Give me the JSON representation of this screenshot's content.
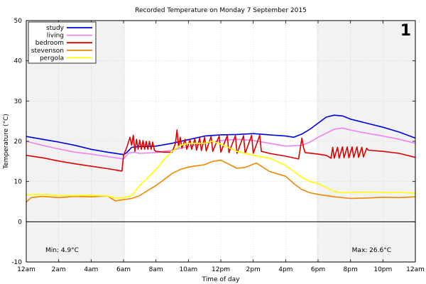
{
  "chart_data": {
    "type": "line",
    "title": "Recorded Temperature on Monday  7 September 2015",
    "xlabel": "Time of day",
    "ylabel": "Temperature (°C)",
    "panel_number": "1",
    "xlim": [
      0,
      24
    ],
    "ylim": [
      -10,
      50
    ],
    "grid": true,
    "legend_position": "top-left",
    "x_ticks": [
      {
        "x": 0,
        "label": "12am"
      },
      {
        "x": 2,
        "label": "2am"
      },
      {
        "x": 4,
        "label": "4am"
      },
      {
        "x": 6,
        "label": "6am"
      },
      {
        "x": 8,
        "label": "8am"
      },
      {
        "x": 10,
        "label": "10am"
      },
      {
        "x": 12,
        "label": "12pm"
      },
      {
        "x": 14,
        "label": "2pm"
      },
      {
        "x": 16,
        "label": "4pm"
      },
      {
        "x": 18,
        "label": "6pm"
      },
      {
        "x": 20,
        "label": "8pm"
      },
      {
        "x": 22,
        "label": "10pm"
      },
      {
        "x": 24,
        "label": "12am"
      }
    ],
    "y_ticks": [
      -10,
      0,
      10,
      20,
      30,
      40,
      50
    ],
    "night_shading": [
      [
        0,
        6.1
      ],
      [
        17.9,
        24
      ]
    ],
    "annotations": {
      "min": "Min: 4.9°C",
      "max": "Max: 26.6°C"
    },
    "series": [
      {
        "name": "study",
        "color": "#0000dd",
        "points": [
          [
            0,
            21.2
          ],
          [
            1,
            20.5
          ],
          [
            2,
            19.8
          ],
          [
            3,
            19.0
          ],
          [
            4,
            18.0
          ],
          [
            5,
            17.3
          ],
          [
            6,
            16.7
          ],
          [
            6.2,
            17.2
          ],
          [
            6.5,
            18.5
          ],
          [
            7,
            18.7
          ],
          [
            8,
            18.8
          ],
          [
            9,
            19.5
          ],
          [
            10,
            20.4
          ],
          [
            11,
            21.3
          ],
          [
            12,
            21.6
          ],
          [
            13,
            21.7
          ],
          [
            14,
            21.9
          ],
          [
            15,
            21.6
          ],
          [
            16,
            21.3
          ],
          [
            16.5,
            21.0
          ],
          [
            17,
            21.8
          ],
          [
            17.5,
            23.0
          ],
          [
            18,
            24.5
          ],
          [
            18.5,
            26.0
          ],
          [
            19,
            26.5
          ],
          [
            19.5,
            26.3
          ],
          [
            20,
            25.5
          ],
          [
            21,
            24.5
          ],
          [
            22,
            23.5
          ],
          [
            23,
            22.3
          ],
          [
            24,
            20.8
          ]
        ]
      },
      {
        "name": "living",
        "color": "#ee82ee",
        "points": [
          [
            0,
            20.0
          ],
          [
            1,
            19.0
          ],
          [
            2,
            18.1
          ],
          [
            3,
            17.3
          ],
          [
            4,
            16.8
          ],
          [
            5,
            16.2
          ],
          [
            6,
            15.6
          ],
          [
            6.3,
            17.0
          ],
          [
            6.6,
            17.3
          ],
          [
            7,
            17.0
          ],
          [
            8,
            17.2
          ],
          [
            9,
            17.8
          ],
          [
            10,
            18.7
          ],
          [
            11,
            19.5
          ],
          [
            12,
            20.2
          ],
          [
            13,
            20.5
          ],
          [
            14,
            20.2
          ],
          [
            15,
            19.5
          ],
          [
            16,
            18.8
          ],
          [
            17,
            19.0
          ],
          [
            17.5,
            19.8
          ],
          [
            18,
            21.0
          ],
          [
            18.5,
            22.0
          ],
          [
            19,
            23.0
          ],
          [
            19.5,
            23.3
          ],
          [
            20,
            22.8
          ],
          [
            21,
            22.0
          ],
          [
            22,
            21.3
          ],
          [
            23,
            20.5
          ],
          [
            24,
            19.5
          ]
        ]
      },
      {
        "name": "bedroom",
        "color": "#dd0000",
        "points": [
          [
            0,
            16.5
          ],
          [
            1,
            15.9
          ],
          [
            2,
            15.1
          ],
          [
            3,
            14.4
          ],
          [
            4,
            13.8
          ],
          [
            5,
            13.2
          ],
          [
            5.9,
            12.6
          ],
          [
            6.0,
            16.5
          ],
          [
            6.2,
            18.5
          ],
          [
            6.4,
            21.0
          ],
          [
            6.5,
            19.0
          ],
          [
            6.6,
            21.5
          ],
          [
            6.7,
            17.5
          ],
          [
            6.8,
            20.5
          ],
          [
            6.9,
            18.0
          ],
          [
            7.0,
            20.3
          ],
          [
            7.1,
            18.0
          ],
          [
            7.2,
            20.2
          ],
          [
            7.3,
            18.0
          ],
          [
            7.4,
            20.0
          ],
          [
            7.5,
            18.0
          ],
          [
            7.6,
            20.0
          ],
          [
            7.7,
            18.0
          ],
          [
            7.8,
            19.8
          ],
          [
            7.9,
            17.8
          ],
          [
            8.0,
            17.5
          ],
          [
            8.5,
            17.3
          ],
          [
            9.0,
            17.3
          ],
          [
            9.2,
            19.5
          ],
          [
            9.3,
            22.8
          ],
          [
            9.4,
            18.5
          ],
          [
            9.5,
            21.0
          ],
          [
            9.6,
            18.3
          ],
          [
            9.8,
            20.5
          ],
          [
            9.9,
            18.0
          ],
          [
            10.1,
            20.4
          ],
          [
            10.2,
            18.0
          ],
          [
            10.4,
            20.6
          ],
          [
            10.5,
            17.8
          ],
          [
            10.7,
            20.8
          ],
          [
            10.8,
            17.7
          ],
          [
            11,
            21.0
          ],
          [
            11.1,
            17.6
          ],
          [
            11.4,
            21.2
          ],
          [
            11.5,
            17.5
          ],
          [
            11.9,
            21.3
          ],
          [
            12.0,
            17.3
          ],
          [
            12.4,
            21.4
          ],
          [
            12.5,
            17.2
          ],
          [
            12.9,
            21.4
          ],
          [
            13.0,
            17.0
          ],
          [
            13.4,
            21.4
          ],
          [
            13.5,
            17.0
          ],
          [
            13.9,
            21.5
          ],
          [
            14.0,
            17.0
          ],
          [
            14.4,
            21.5
          ],
          [
            14.5,
            17.5
          ],
          [
            15,
            17.0
          ],
          [
            16,
            16.3
          ],
          [
            16.8,
            15.6
          ],
          [
            17.0,
            20.8
          ],
          [
            17.1,
            18.5
          ],
          [
            17.2,
            17.2
          ],
          [
            18,
            16.8
          ],
          [
            18.5,
            16.5
          ],
          [
            18.8,
            15.8
          ],
          [
            18.9,
            18.5
          ],
          [
            19.0,
            15.8
          ],
          [
            19.2,
            18.5
          ],
          [
            19.3,
            15.8
          ],
          [
            19.5,
            18.6
          ],
          [
            19.6,
            15.9
          ],
          [
            19.8,
            18.6
          ],
          [
            19.9,
            15.9
          ],
          [
            20.1,
            18.6
          ],
          [
            20.2,
            16.0
          ],
          [
            20.4,
            18.6
          ],
          [
            20.5,
            16.0
          ],
          [
            20.7,
            18.5
          ],
          [
            20.8,
            16.1
          ],
          [
            21.0,
            18.3
          ],
          [
            21.1,
            17.8
          ],
          [
            22,
            17.5
          ],
          [
            23,
            17.0
          ],
          [
            24,
            16.0
          ]
        ]
      },
      {
        "name": "stevenson",
        "color": "#ee8800",
        "points": [
          [
            0,
            4.9
          ],
          [
            0.3,
            6.0
          ],
          [
            1,
            6.3
          ],
          [
            2,
            6.0
          ],
          [
            3,
            6.3
          ],
          [
            4,
            6.2
          ],
          [
            5,
            6.4
          ],
          [
            5.5,
            5.2
          ],
          [
            6,
            5.5
          ],
          [
            6.5,
            5.8
          ],
          [
            7,
            6.5
          ],
          [
            7.5,
            7.8
          ],
          [
            8,
            9.0
          ],
          [
            8.5,
            10.5
          ],
          [
            9,
            12.0
          ],
          [
            9.5,
            13.0
          ],
          [
            10,
            13.6
          ],
          [
            11,
            14.2
          ],
          [
            11.5,
            15.0
          ],
          [
            12,
            15.3
          ],
          [
            12.5,
            14.3
          ],
          [
            13,
            13.3
          ],
          [
            13.5,
            13.5
          ],
          [
            14,
            14.3
          ],
          [
            14.2,
            14.6
          ],
          [
            14.5,
            13.8
          ],
          [
            15,
            12.5
          ],
          [
            16,
            11.3
          ],
          [
            16.5,
            9.5
          ],
          [
            17,
            8.0
          ],
          [
            17.5,
            7.2
          ],
          [
            18,
            6.8
          ],
          [
            19,
            6.2
          ],
          [
            20,
            5.8
          ],
          [
            21,
            5.9
          ],
          [
            22,
            6.1
          ],
          [
            23,
            6.0
          ],
          [
            24,
            6.2
          ]
        ]
      },
      {
        "name": "pergola",
        "color": "#ffff00",
        "points": [
          [
            0,
            6.7
          ],
          [
            1,
            6.8
          ],
          [
            2,
            6.5
          ],
          [
            3,
            6.5
          ],
          [
            4,
            6.6
          ],
          [
            5,
            6.4
          ],
          [
            5.5,
            5.9
          ],
          [
            6,
            6.0
          ],
          [
            6.5,
            6.5
          ],
          [
            7,
            9.0
          ],
          [
            7.5,
            11.0
          ],
          [
            8,
            13.0
          ],
          [
            8.5,
            15.5
          ],
          [
            9,
            17.5
          ],
          [
            9.5,
            19.0
          ],
          [
            10,
            19.5
          ],
          [
            11,
            19.5
          ],
          [
            11.5,
            20.0
          ],
          [
            12,
            19.3
          ],
          [
            13,
            17.5
          ],
          [
            14,
            16.5
          ],
          [
            15,
            15.8
          ],
          [
            16,
            14.0
          ],
          [
            16.5,
            12.5
          ],
          [
            17,
            11.0
          ],
          [
            17.5,
            10.0
          ],
          [
            18,
            9.5
          ],
          [
            18.5,
            8.5
          ],
          [
            19,
            7.5
          ],
          [
            19.5,
            7.2
          ],
          [
            20,
            7.3
          ],
          [
            21,
            7.4
          ],
          [
            22,
            7.3
          ],
          [
            23,
            7.3
          ],
          [
            24,
            7.1
          ]
        ]
      }
    ]
  }
}
